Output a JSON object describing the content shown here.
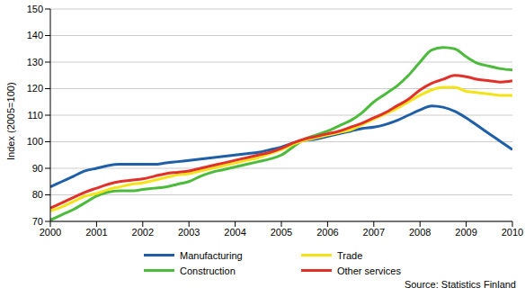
{
  "chart_data": {
    "type": "line",
    "y_label": "Index (2005=100)",
    "annotations": [
      "Source: Statistics Finland"
    ],
    "x": [
      2000,
      2000.25,
      2000.5,
      2000.75,
      2001,
      2001.25,
      2001.5,
      2001.75,
      2002,
      2002.25,
      2002.5,
      2002.75,
      2003,
      2003.25,
      2003.5,
      2003.75,
      2004,
      2004.25,
      2004.5,
      2004.75,
      2005,
      2005.25,
      2005.5,
      2005.75,
      2006,
      2006.25,
      2006.5,
      2006.75,
      2007,
      2007.25,
      2007.5,
      2007.75,
      2008,
      2008.25,
      2008.5,
      2008.75,
      2009,
      2009.25,
      2009.5,
      2009.75,
      2010
    ],
    "series": [
      {
        "name": "Manufacturing",
        "color": "#1f5fa8",
        "values": [
          83,
          85,
          87,
          89,
          90,
          91,
          91.5,
          91.5,
          91.5,
          91.5,
          92,
          92.5,
          93,
          93.5,
          94,
          94.5,
          95,
          95.5,
          96,
          97,
          98,
          99.5,
          100.5,
          101,
          102,
          103,
          104,
          105,
          105.5,
          106.5,
          108,
          110,
          112,
          113.5,
          113,
          111.5,
          109,
          106,
          103,
          100,
          97
        ]
      },
      {
        "name": "Construction",
        "color": "#4cbb3c",
        "values": [
          70.5,
          72.5,
          74.5,
          77,
          79.5,
          81,
          81.5,
          81.5,
          82,
          82.5,
          83,
          84,
          85,
          87,
          88.5,
          89.5,
          90.5,
          91.5,
          92.5,
          93.5,
          95,
          98,
          101,
          102.5,
          104,
          106,
          108,
          111,
          115,
          118,
          121,
          125,
          130,
          134.5,
          135.5,
          135,
          132,
          129.5,
          128.5,
          127.5,
          127
        ]
      },
      {
        "name": "Trade",
        "color": "#f5e31a",
        "values": [
          74,
          75.5,
          77.5,
          79.5,
          80.5,
          82,
          83,
          84,
          84.5,
          85.5,
          86.5,
          87.5,
          88,
          89,
          90,
          91,
          92,
          93,
          94,
          95.5,
          97,
          99,
          100.5,
          101.5,
          102.5,
          103.5,
          104.5,
          106.5,
          108.5,
          110.5,
          112.5,
          115,
          117.5,
          119.5,
          120.5,
          120.5,
          119,
          118.5,
          118,
          117.5,
          117.5
        ]
      },
      {
        "name": "Other services",
        "color": "#e0312b",
        "values": [
          75,
          77,
          79,
          81,
          82.5,
          84,
          85,
          85.5,
          86,
          87,
          88,
          88.5,
          89,
          90,
          91,
          92,
          93,
          94,
          95,
          96,
          97.5,
          99.5,
          101,
          102,
          103,
          104,
          105.5,
          107,
          109,
          111,
          113.5,
          116,
          119.5,
          122,
          123.5,
          125,
          124.5,
          123.5,
          123,
          122.5,
          123
        ]
      }
    ],
    "xlim": [
      2000,
      2010
    ],
    "xticks": [
      2000,
      2001,
      2002,
      2003,
      2004,
      2005,
      2006,
      2007,
      2008,
      2009,
      2010
    ],
    "ylim": [
      70,
      150
    ],
    "yticks": [
      70,
      80,
      90,
      100,
      110,
      120,
      130,
      140,
      150
    ],
    "grid": true,
    "legend": "bottom"
  }
}
